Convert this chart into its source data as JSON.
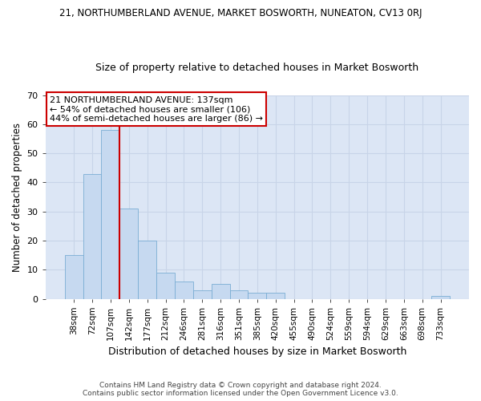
{
  "title": "21, NORTHUMBERLAND AVENUE, MARKET BOSWORTH, NUNEATON, CV13 0RJ",
  "subtitle": "Size of property relative to detached houses in Market Bosworth",
  "xlabel": "Distribution of detached houses by size in Market Bosworth",
  "ylabel": "Number of detached properties",
  "bar_labels": [
    "38sqm",
    "72sqm",
    "107sqm",
    "142sqm",
    "177sqm",
    "212sqm",
    "246sqm",
    "281sqm",
    "316sqm",
    "351sqm",
    "385sqm",
    "420sqm",
    "455sqm",
    "490sqm",
    "524sqm",
    "559sqm",
    "594sqm",
    "629sqm",
    "663sqm",
    "698sqm",
    "733sqm"
  ],
  "bar_values": [
    15,
    43,
    58,
    31,
    20,
    9,
    6,
    3,
    5,
    3,
    2,
    2,
    0,
    0,
    0,
    0,
    0,
    0,
    0,
    0,
    1
  ],
  "bar_color": "#c6d9f0",
  "bar_edge_color": "#7aadd4",
  "grid_color": "#c8d4e8",
  "bg_color": "#dce6f5",
  "vline_color": "#cc0000",
  "vline_x": 2.5,
  "annotation_text": "21 NORTHUMBERLAND AVENUE: 137sqm\n← 54% of detached houses are smaller (106)\n44% of semi-detached houses are larger (86) →",
  "annotation_box_color": "#ffffff",
  "annotation_box_edge": "#cc0000",
  "ylim": [
    0,
    70
  ],
  "yticks": [
    0,
    10,
    20,
    30,
    40,
    50,
    60,
    70
  ],
  "footer_line1": "Contains HM Land Registry data © Crown copyright and database right 2024.",
  "footer_line2": "Contains public sector information licensed under the Open Government Licence v3.0."
}
